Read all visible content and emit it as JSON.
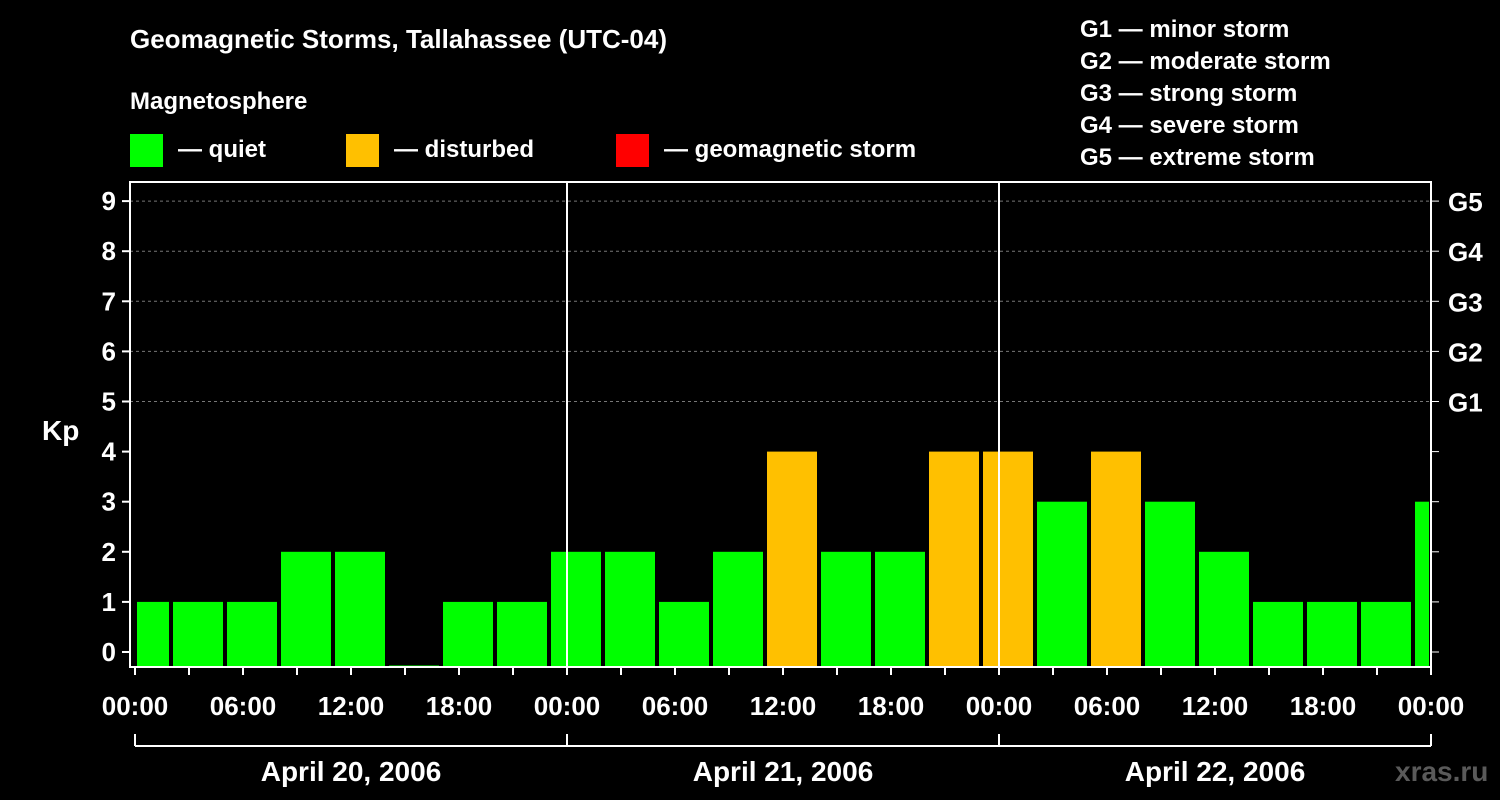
{
  "header": {
    "title": "Geomagnetic Storms, Tallahassee (UTC-04)",
    "legend_title": "Magnetosphere",
    "legend": [
      {
        "label": "— quiet",
        "color": "#00FF00"
      },
      {
        "label": "— disturbed",
        "color": "#FFC000"
      },
      {
        "label": "— geomagnetic storm",
        "color": "#FF0000"
      }
    ],
    "storm_scale": [
      "G1 — minor storm",
      "G2 — moderate storm",
      "G3 — strong storm",
      "G4 — severe storm",
      "G5 — extreme storm"
    ]
  },
  "chart_data": {
    "type": "bar",
    "title": "Geomagnetic Storms, Tallahassee (UTC-04)",
    "ylabel": "Kp",
    "ylim": [
      0,
      9
    ],
    "yticks": [
      "0",
      "1",
      "2",
      "3",
      "4",
      "5",
      "6",
      "7",
      "8",
      "9"
    ],
    "right_ticks": [
      {
        "kp": 5,
        "label": "G1"
      },
      {
        "kp": 6,
        "label": "G2"
      },
      {
        "kp": 7,
        "label": "G3"
      },
      {
        "kp": 8,
        "label": "G4"
      },
      {
        "kp": 9,
        "label": "G5"
      }
    ],
    "x_hours_range": [
      0,
      72
    ],
    "xtick_labels": [
      "00:00",
      "06:00",
      "12:00",
      "18:00",
      "00:00",
      "06:00",
      "12:00",
      "18:00",
      "00:00",
      "06:00",
      "12:00",
      "18:00",
      "00:00"
    ],
    "days": [
      "April 20, 2006",
      "April 21, 2006",
      "April 22, 2006"
    ],
    "bars": [
      {
        "start": 0,
        "end": 2,
        "kp": 1,
        "level": "quiet"
      },
      {
        "start": 2,
        "end": 5,
        "kp": 1,
        "level": "quiet"
      },
      {
        "start": 5,
        "end": 8,
        "kp": 1,
        "level": "quiet"
      },
      {
        "start": 8,
        "end": 11,
        "kp": 2,
        "level": "quiet"
      },
      {
        "start": 11,
        "end": 14,
        "kp": 2,
        "level": "quiet"
      },
      {
        "start": 14,
        "end": 17,
        "kp": 0,
        "level": "quiet"
      },
      {
        "start": 17,
        "end": 20,
        "kp": 1,
        "level": "quiet"
      },
      {
        "start": 20,
        "end": 23,
        "kp": 1,
        "level": "quiet"
      },
      {
        "start": 23,
        "end": 26,
        "kp": 2,
        "level": "quiet"
      },
      {
        "start": 26,
        "end": 29,
        "kp": 2,
        "level": "quiet"
      },
      {
        "start": 29,
        "end": 32,
        "kp": 1,
        "level": "quiet"
      },
      {
        "start": 32,
        "end": 35,
        "kp": 2,
        "level": "quiet"
      },
      {
        "start": 35,
        "end": 38,
        "kp": 4,
        "level": "disturbed"
      },
      {
        "start": 38,
        "end": 41,
        "kp": 2,
        "level": "quiet"
      },
      {
        "start": 41,
        "end": 44,
        "kp": 2,
        "level": "quiet"
      },
      {
        "start": 44,
        "end": 47,
        "kp": 4,
        "level": "disturbed"
      },
      {
        "start": 47,
        "end": 50,
        "kp": 4,
        "level": "disturbed"
      },
      {
        "start": 50,
        "end": 53,
        "kp": 3,
        "level": "quiet"
      },
      {
        "start": 53,
        "end": 56,
        "kp": 4,
        "level": "disturbed"
      },
      {
        "start": 56,
        "end": 59,
        "kp": 3,
        "level": "quiet"
      },
      {
        "start": 59,
        "end": 62,
        "kp": 2,
        "level": "quiet"
      },
      {
        "start": 62,
        "end": 65,
        "kp": 1,
        "level": "quiet"
      },
      {
        "start": 65,
        "end": 68,
        "kp": 1,
        "level": "quiet"
      },
      {
        "start": 68,
        "end": 71,
        "kp": 1,
        "level": "quiet"
      },
      {
        "start": 71,
        "end": 72,
        "kp": 3,
        "level": "quiet"
      }
    ]
  },
  "colors": {
    "quiet": "#00FF00",
    "disturbed": "#FFC000",
    "storm": "#FF0000"
  },
  "watermark": "xras.ru"
}
